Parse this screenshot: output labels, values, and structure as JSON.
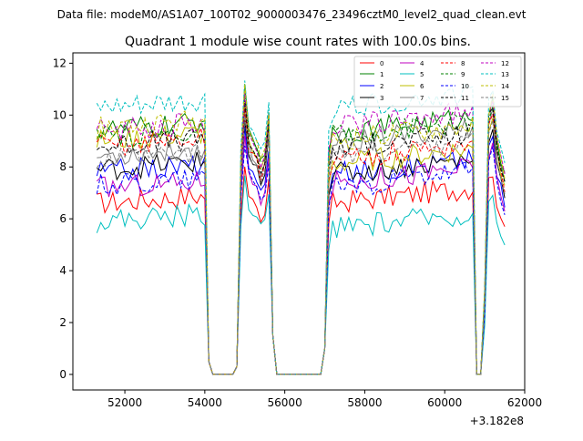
{
  "chart_data": {
    "type": "line",
    "suptitle": "Data file: modeM0/AS1A07_100T02_9000003476_23496cztM0_level2_quad_clean.evt",
    "title": "Quadrant 1 module wise count rates with 100.0s bins.",
    "xlabel": "",
    "ylabel": "",
    "x_offset_label": "+3.182e8",
    "xlim": [
      50700,
      62000
    ],
    "ylim": [
      -0.6,
      12.4
    ],
    "x_ticks": [
      52000,
      54000,
      56000,
      58000,
      60000,
      62000
    ],
    "x_tick_labels": [
      "52000",
      "54000",
      "56000",
      "58000",
      "60000",
      "62000"
    ],
    "y_ticks": [
      0,
      2,
      4,
      6,
      8,
      10,
      12
    ],
    "y_tick_labels": [
      "0",
      "2",
      "4",
      "6",
      "8",
      "10",
      "12"
    ],
    "grid": false,
    "legend_position": "top-right",
    "x_range": {
      "start": 51300,
      "step": 100,
      "count": 103
    },
    "series": [
      {
        "name": "0",
        "color": "#ff0000",
        "dash": "solid",
        "base1": 6.6,
        "base3": 6.6,
        "b2": 8.1,
        "b3": 7.8
      },
      {
        "name": "1",
        "color": "#008000",
        "dash": "solid",
        "base1": 9.4,
        "base3": 9.3,
        "b2": 11.0,
        "b3": 10.6
      },
      {
        "name": "2",
        "color": "#0000ff",
        "dash": "solid",
        "base1": 7.8,
        "base3": 7.7,
        "b2": 9.5,
        "b3": 9.2
      },
      {
        "name": "3",
        "color": "#000000",
        "dash": "solid",
        "base1": 7.9,
        "base3": 7.7,
        "b2": 9.9,
        "b3": 9.6
      },
      {
        "name": "4",
        "color": "#bf00bf",
        "dash": "solid",
        "base1": 7.2,
        "base3": 7.4,
        "b2": 9.0,
        "b3": 8.8
      },
      {
        "name": "5",
        "color": "#00bfbf",
        "dash": "solid",
        "base1": 5.9,
        "base3": 5.6,
        "b2": 7.6,
        "b3": 6.9
      },
      {
        "name": "6",
        "color": "#bfbf00",
        "dash": "solid",
        "base1": 9.0,
        "base3": 8.1,
        "b2": 10.6,
        "b3": 10.0
      },
      {
        "name": "7",
        "color": "#808080",
        "dash": "solid",
        "base1": 8.4,
        "base3": 8.9,
        "b2": 10.3,
        "b3": 10.1
      },
      {
        "name": "8",
        "color": "#ff0000",
        "dash": "dashed",
        "base1": 8.8,
        "base3": 8.3,
        "b2": 10.2,
        "b3": 10.0
      },
      {
        "name": "9",
        "color": "#008000",
        "dash": "dashed",
        "base1": 9.1,
        "base3": 9.2,
        "b2": 10.8,
        "b3": 10.4
      },
      {
        "name": "10",
        "color": "#0000ff",
        "dash": "dashed",
        "base1": 7.3,
        "base3": 7.2,
        "b2": 9.0,
        "b3": 8.6
      },
      {
        "name": "11",
        "color": "#000000",
        "dash": "dashed",
        "base1": 8.8,
        "base3": 8.7,
        "b2": 10.5,
        "b3": 10.3
      },
      {
        "name": "12",
        "color": "#bf00bf",
        "dash": "dashed",
        "base1": 9.4,
        "base3": 9.5,
        "b2": 10.9,
        "b3": 10.6
      },
      {
        "name": "13",
        "color": "#00bfbf",
        "dash": "dashed",
        "base1": 10.2,
        "base3": 10.2,
        "b2": 11.5,
        "b3": 11.1
      },
      {
        "name": "14",
        "color": "#bfbf00",
        "dash": "dashed",
        "base1": 9.5,
        "base3": 9.0,
        "b2": 11.1,
        "b3": 10.7
      },
      {
        "name": "15",
        "color": "#808080",
        "dash": "dashed",
        "base1": 8.2,
        "base3": 8.4,
        "b2": 10.0,
        "b3": 9.8
      }
    ]
  }
}
